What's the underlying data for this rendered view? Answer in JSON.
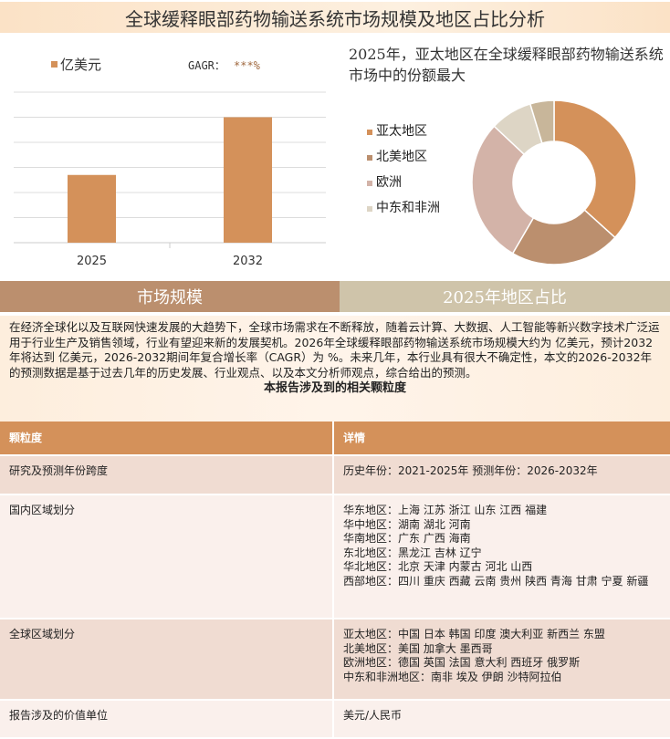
{
  "title": "全球缓释眼部药物输送系统市场规模及地区占比分析",
  "chart_data": [
    {
      "type": "bar",
      "legend": "亿美元",
      "gagr_label": "GAGR：",
      "gagr_value": "***%",
      "categories": [
        "2025",
        "2032"
      ],
      "values": [
        2.7,
        5.0
      ],
      "ylim": [
        0,
        6
      ],
      "grid": true,
      "color": "#d4915a"
    },
    {
      "type": "pie",
      "donut": true,
      "title": "2025年，亚太地区在全球缓释眼部药物输送系统市场中的份额最大",
      "labels": [
        "亚太地区",
        "北美地区",
        "欧洲",
        "中东和非洲",
        ""
      ],
      "values": [
        36.7,
        21.7,
        28.6,
        8.3,
        4.7
      ],
      "colors": [
        "#d4915a",
        "#bb8f6e",
        "#d3b3a8",
        "#ddd5c5",
        "#c8b69a"
      ],
      "legend_position": "left"
    }
  ],
  "tabs": [
    "市场规模",
    "2025年地区占比"
  ],
  "intro": {
    "text": "在经济全球化以及互联网快速发展的大趋势下，全球市场需求在不断释放，随着云计算、大数据、人工智能等新兴数字技术广泛运用于行业生产及销售领域，行业有望迎来新的发展契机。2026年全球缓释眼部药物输送系统市场规模大约为 亿美元，预计2032年将达到 亿美元，2026-2032期间年复合增长率（CAGR）为 %。未来几年，本行业具有很大不确定性，本文的2026-2032年的预测数据是基于过去几年的历史发展、行业观点、以及本文分析师观点，综合给出的预测。",
    "subtitle": "本报告涉及到的相关颗粒度"
  },
  "table": {
    "headers": [
      "颗粒度",
      "详情"
    ],
    "rows": [
      [
        "研究及预测年份跨度",
        "历史年份：2021-2025年 预测年份：2026-2032年"
      ],
      [
        "国内区域划分",
        "华东地区：上海  江苏  浙江  山东  江西  福建\n华中地区：湖南  湖北  河南\n华南地区：广东  广西  海南\n东北地区：黑龙江  吉林  辽宁\n华北地区：北京  天津  内蒙古  河北  山西\n西部地区：四川  重庆  西藏  云南  贵州  陕西  青海  甘肃  宁夏  新疆"
      ],
      [
        "全球区域划分",
        "亚太地区：中国  日本  韩国  印度  澳大利亚  新西兰  东盟\n北美地区：美国  加拿大  墨西哥\n欧洲地区：德国  英国  法国  意大利  西班牙  俄罗斯\n中东和非洲地区：南非  埃及  伊朗  沙特阿拉伯"
      ],
      [
        "报告涉及的价值单位",
        "美元/人民币"
      ]
    ]
  }
}
